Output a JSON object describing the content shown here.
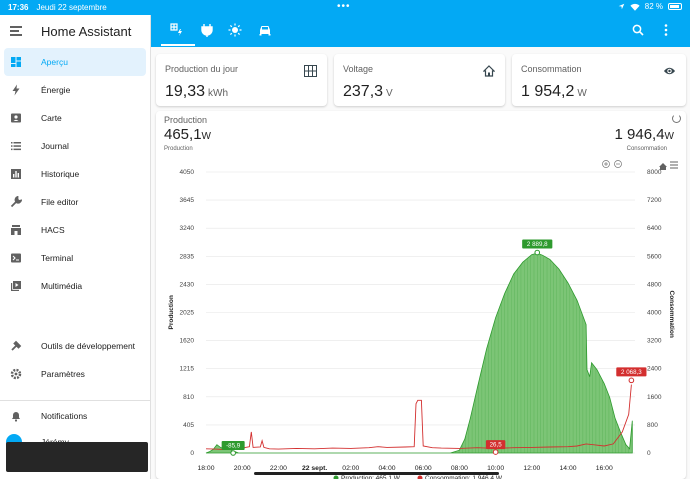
{
  "status_bar": {
    "time": "17:36",
    "date": "Jeudi 22 septembre",
    "battery": "82 %"
  },
  "sidebar": {
    "title": "Home Assistant",
    "items": [
      {
        "label": "Aperçu",
        "icon": "dashboard-icon",
        "active": true
      },
      {
        "label": "Énergie",
        "icon": "lightning-icon"
      },
      {
        "label": "Carte",
        "icon": "map-icon"
      },
      {
        "label": "Journal",
        "icon": "list-icon"
      },
      {
        "label": "Historique",
        "icon": "chart-icon"
      },
      {
        "label": "File editor",
        "icon": "wrench-icon"
      },
      {
        "label": "HACS",
        "icon": "hacs-icon"
      },
      {
        "label": "Terminal",
        "icon": "terminal-icon"
      },
      {
        "label": "Multimédia",
        "icon": "media-icon"
      }
    ],
    "dev_tools": "Outils de développement",
    "settings": "Paramètres",
    "notifications": "Notifications",
    "user": "Jérémy"
  },
  "toolbar": {
    "tabs": [
      "solar-power-icon",
      "plug-icon",
      "sun-icon",
      "car-icon"
    ]
  },
  "cards": [
    {
      "title": "Production du jour",
      "value": "19,33",
      "unit": "kWh",
      "icon": "solar-panel-icon"
    },
    {
      "title": "Voltage",
      "value": "237,3",
      "unit": "V",
      "icon": "home-icon"
    },
    {
      "title": "Consommation",
      "value": "1 954,2",
      "unit": "W",
      "icon": "eye-icon"
    }
  ],
  "chart_header": {
    "title": "Production",
    "prod_value": "465,1",
    "prod_unit": "W",
    "prod_sub": "Production",
    "cons_value": "1 946,4",
    "cons_unit": "W",
    "cons_sub": "Consommation"
  },
  "colors": {
    "accent": "#03a9f4",
    "production": "#2e9a2e",
    "production_fill": "#7cc576",
    "consumption": "#d32f2f"
  },
  "chart_data": {
    "type": "area",
    "ylabel_left": "Production",
    "ylabel_right": "Consommation",
    "y_left_ticks": [
      0,
      405,
      810,
      1215,
      1620,
      2025,
      2430,
      2835,
      3240,
      3645,
      4050
    ],
    "y_right_ticks": [
      0,
      800,
      1600,
      2400,
      3200,
      4000,
      4800,
      5600,
      6400,
      7200,
      8000
    ],
    "y_left_tick_labels": [
      "0",
      "405",
      "810",
      "1215",
      "1620",
      "2025",
      "2430",
      "2835",
      "3240",
      "3645",
      "4050"
    ],
    "y_right_tick_labels": [
      "0",
      "800",
      "1600",
      "2400",
      "3200",
      "4000",
      "4800",
      "5600",
      "6400",
      "7200",
      "8000"
    ],
    "y_left_range": [
      0,
      4050
    ],
    "y_right_range": [
      0,
      8000
    ],
    "x_range": [
      0,
      23.7
    ],
    "x_ticks": [
      {
        "h": 0,
        "label": "18:00"
      },
      {
        "h": 2,
        "label": "20:00"
      },
      {
        "h": 4,
        "label": "22:00"
      },
      {
        "h": 6,
        "label": "22 sept."
      },
      {
        "h": 8,
        "label": "02:00"
      },
      {
        "h": 10,
        "label": "04:00"
      },
      {
        "h": 12,
        "label": "06:00"
      },
      {
        "h": 14,
        "label": "08:00"
      },
      {
        "h": 16,
        "label": "10:00"
      },
      {
        "h": 18,
        "label": "12:00"
      },
      {
        "h": 20,
        "label": "14:00"
      },
      {
        "h": 22,
        "label": "16:00"
      }
    ],
    "production": {
      "name": "Production",
      "points": [
        [
          0,
          0
        ],
        [
          0.2,
          20
        ],
        [
          0.4,
          50
        ],
        [
          0.6,
          120
        ],
        [
          0.8,
          80
        ],
        [
          1.0,
          60
        ],
        [
          1.2,
          90
        ],
        [
          1.4,
          40
        ],
        [
          1.6,
          20
        ],
        [
          1.8,
          0
        ],
        [
          13.5,
          0
        ],
        [
          14.0,
          40
        ],
        [
          14.3,
          200
        ],
        [
          14.6,
          500
        ],
        [
          15.0,
          950
        ],
        [
          15.5,
          1500
        ],
        [
          16.0,
          1950
        ],
        [
          16.5,
          2300
        ],
        [
          17.0,
          2580
        ],
        [
          17.5,
          2750
        ],
        [
          18.0,
          2860
        ],
        [
          18.3,
          2880
        ],
        [
          18.6,
          2850
        ],
        [
          19.0,
          2790
        ],
        [
          19.5,
          2650
        ],
        [
          20.0,
          2450
        ],
        [
          20.5,
          2200
        ],
        [
          21.0,
          1850
        ],
        [
          21.05,
          1200
        ],
        [
          21.2,
          1100
        ],
        [
          21.3,
          1300
        ],
        [
          21.6,
          1200
        ],
        [
          22.0,
          1000
        ],
        [
          22.3,
          800
        ],
        [
          22.6,
          500
        ],
        [
          22.9,
          300
        ],
        [
          23.2,
          120
        ],
        [
          23.4,
          60
        ],
        [
          23.55,
          465
        ]
      ]
    },
    "consumption": {
      "name": "Consommation",
      "points": [
        [
          0,
          120
        ],
        [
          0.5,
          110
        ],
        [
          1.0,
          100
        ],
        [
          1.5,
          160
        ],
        [
          2.0,
          140
        ],
        [
          2.4,
          180
        ],
        [
          2.5,
          600
        ],
        [
          2.6,
          160
        ],
        [
          3.0,
          170
        ],
        [
          3.1,
          350
        ],
        [
          3.2,
          160
        ],
        [
          3.5,
          120
        ],
        [
          4,
          110
        ],
        [
          5,
          130
        ],
        [
          6,
          120
        ],
        [
          7,
          140
        ],
        [
          8,
          130
        ],
        [
          9,
          150
        ],
        [
          9.5,
          180
        ],
        [
          10,
          160
        ],
        [
          11,
          170
        ],
        [
          11.5,
          180
        ],
        [
          11.6,
          1400
        ],
        [
          11.7,
          1500
        ],
        [
          11.8,
          1500
        ],
        [
          11.9,
          1500
        ],
        [
          12.0,
          200
        ],
        [
          12.5,
          150
        ],
        [
          13,
          140
        ],
        [
          14,
          130
        ],
        [
          15,
          150
        ],
        [
          16,
          130
        ],
        [
          17,
          150
        ],
        [
          18,
          160
        ],
        [
          19,
          170
        ],
        [
          20,
          180
        ],
        [
          20.5,
          200
        ],
        [
          21,
          260
        ],
        [
          21.5,
          230
        ],
        [
          22,
          200
        ],
        [
          22.5,
          260
        ],
        [
          23,
          600
        ],
        [
          23.35,
          1100
        ],
        [
          23.5,
          1946
        ]
      ]
    },
    "labels": [
      {
        "text": "2 889,8",
        "series": "production",
        "h": 18.3,
        "v": 2889.8
      },
      {
        "text": "-85,9",
        "series": "production",
        "h": 1.5,
        "v": 0
      },
      {
        "text": "26,5",
        "series": "consumption",
        "h": 16.0,
        "v": 26.5
      },
      {
        "text": "2 068,3",
        "series": "consumption",
        "h": 23.5,
        "v": 2068.3
      }
    ],
    "legend": [
      {
        "name": "Production",
        "value": "465,1 W"
      },
      {
        "name": "Consommation",
        "value": "1 946,4 W"
      }
    ]
  }
}
